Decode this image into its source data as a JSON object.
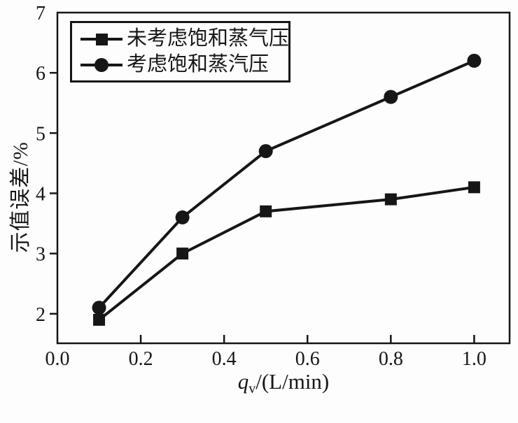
{
  "figure": {
    "background": "#fdfdfd",
    "ink": "#161616"
  },
  "axes": {
    "ylabel": "示值误差/%",
    "xlabel": {
      "variable": "q",
      "subscript": "v",
      "unit": "/(L/min)"
    }
  },
  "legend": {
    "items": [
      {
        "label": "未考虑饱和蒸气压",
        "marker": "square"
      },
      {
        "label": "考虑饱和蒸汽压",
        "marker": "circle"
      }
    ]
  },
  "chart_data": {
    "type": "line",
    "title": "",
    "xlabel": "qv/(L/min)",
    "ylabel": "示值误差/%",
    "x": [
      0.1,
      0.3,
      0.5,
      0.8,
      1.0
    ],
    "series": [
      {
        "name": "未考虑饱和蒸气压",
        "marker": "square",
        "color": "#161616",
        "values": [
          1.9,
          3.0,
          3.7,
          3.9,
          4.1
        ]
      },
      {
        "name": "考虑饱和蒸汽压",
        "marker": "circle",
        "color": "#161616",
        "values": [
          2.1,
          3.6,
          4.7,
          5.6,
          6.2
        ]
      }
    ],
    "x_ticks": [
      0.0,
      0.2,
      0.4,
      0.6,
      0.8,
      1.0
    ],
    "x_tick_labels": [
      "0.0",
      "0.2",
      "0.4",
      "0.6",
      "0.8",
      "1.0"
    ],
    "y_ticks": [
      2,
      3,
      4,
      5,
      6,
      7
    ],
    "y_tick_labels": [
      "2",
      "3",
      "4",
      "5",
      "6",
      "7"
    ],
    "xlim": [
      0,
      1.085
    ],
    "ylim": [
      1.51,
      7
    ],
    "grid": false,
    "legend_position": "top-left",
    "line_color": "#161616"
  }
}
